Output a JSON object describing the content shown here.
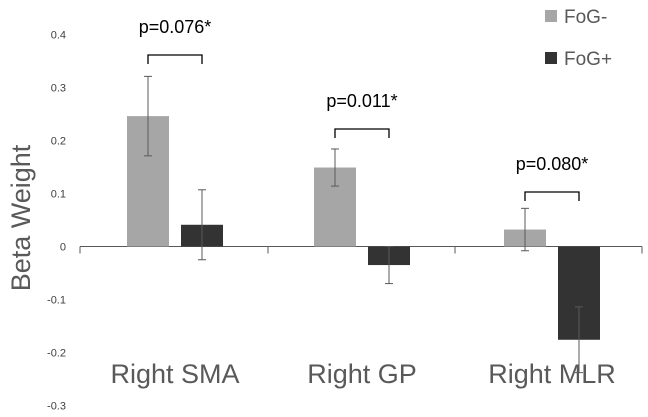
{
  "chart_data": {
    "type": "bar",
    "categories": [
      "Right SMA",
      "Right GP",
      "Right MLR"
    ],
    "series": [
      {
        "name": "FoG-",
        "values": [
          0.246,
          0.149,
          0.032
        ],
        "errors": [
          0.075,
          0.035,
          0.04
        ],
        "color": "#a6a6a6"
      },
      {
        "name": "FoG+",
        "values": [
          0.041,
          -0.035,
          -0.176
        ],
        "errors": [
          0.066,
          0.035,
          0.062
        ],
        "color": "#333333"
      }
    ],
    "ylabel": "Beta Weight",
    "ylim": [
      -0.3,
      0.4
    ],
    "yticks": [
      0.4,
      0.3,
      0.2,
      0.1,
      0,
      -0.1,
      -0.2,
      -0.3
    ],
    "ytick_labels": [
      "0.4",
      "0.3",
      "0.2",
      "0.1",
      "0",
      "-0.1",
      "-0.2",
      "-0.3"
    ],
    "annotations": [
      "p=0.076*",
      "p=0.011*",
      "p=0.080*"
    ],
    "legend_position": "top-right",
    "grid": false
  }
}
